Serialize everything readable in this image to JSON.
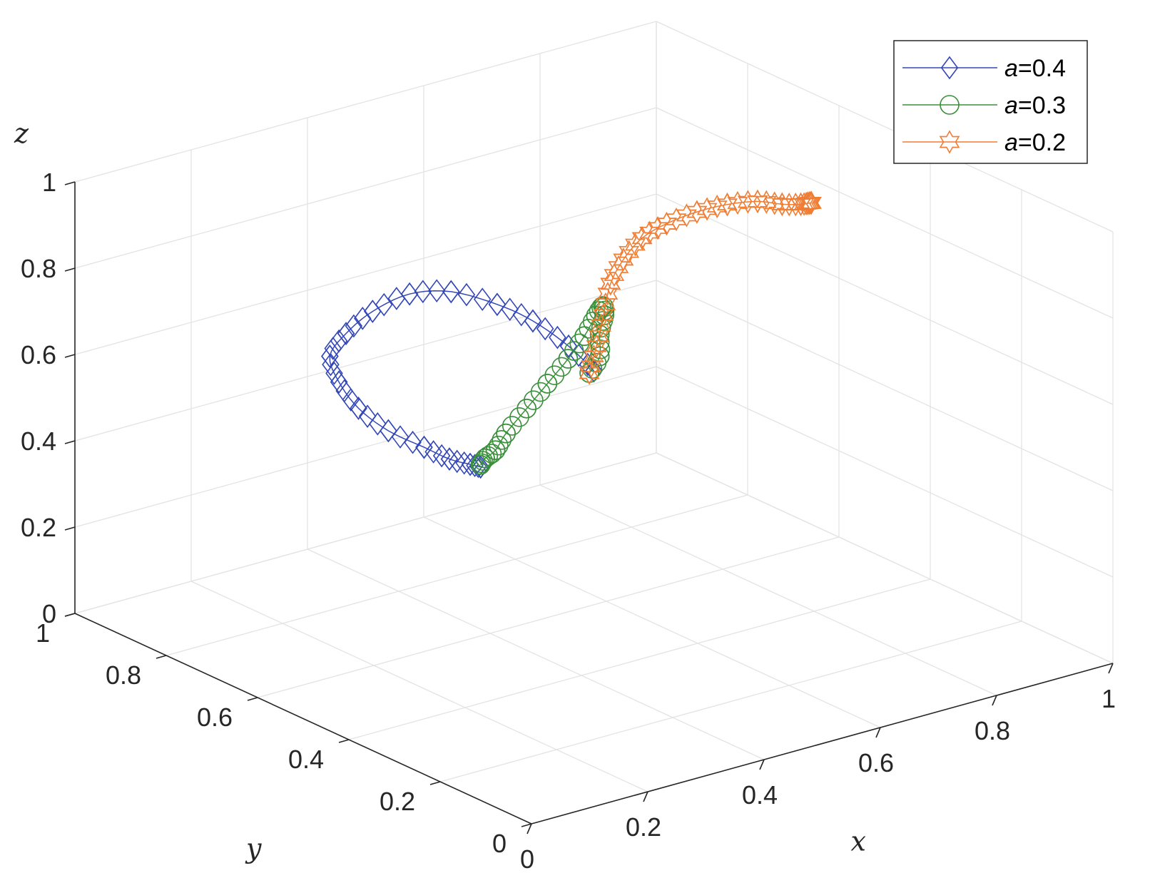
{
  "chart_data": {
    "type": "line3d",
    "xlabel": "x",
    "ylabel": "y",
    "zlabel": "z",
    "xlim": [
      0,
      1
    ],
    "ylim": [
      0,
      1
    ],
    "zlim": [
      0,
      1
    ],
    "grid": true,
    "legend_position": "top-right",
    "x_ticks": [
      "0",
      "0.2",
      "0.4",
      "0.6",
      "0.8",
      "1"
    ],
    "y_ticks": [
      "0",
      "0.2",
      "0.4",
      "0.6",
      "0.8",
      "1"
    ],
    "z_ticks": [
      "0",
      "0.2",
      "0.4",
      "0.6",
      "0.8",
      "1"
    ],
    "series": [
      {
        "name": "a=0.4",
        "legend_prefix": "a",
        "legend_suffix": "=0.4",
        "color": "#3347b8",
        "marker": "diamond",
        "points": [
          [
            0.5,
            0.5,
            0.62
          ],
          [
            0.48,
            0.53,
            0.67
          ],
          [
            0.45,
            0.57,
            0.72
          ],
          [
            0.42,
            0.61,
            0.75
          ],
          [
            0.38,
            0.66,
            0.77
          ],
          [
            0.34,
            0.7,
            0.76
          ],
          [
            0.3,
            0.73,
            0.72
          ],
          [
            0.27,
            0.75,
            0.67
          ],
          [
            0.25,
            0.76,
            0.62
          ],
          [
            0.25,
            0.74,
            0.57
          ],
          [
            0.26,
            0.71,
            0.52
          ],
          [
            0.28,
            0.67,
            0.48
          ],
          [
            0.31,
            0.63,
            0.45
          ],
          [
            0.33,
            0.6,
            0.43
          ],
          [
            0.35,
            0.58,
            0.42
          ],
          [
            0.36,
            0.57,
            0.415
          ]
        ]
      },
      {
        "name": "a=0.3",
        "legend_prefix": "a",
        "legend_suffix": "=0.3",
        "color": "#3a8f3a",
        "marker": "circle",
        "points": [
          [
            0.36,
            0.57,
            0.42
          ],
          [
            0.36,
            0.56,
            0.44
          ],
          [
            0.37,
            0.55,
            0.46
          ],
          [
            0.38,
            0.54,
            0.5
          ],
          [
            0.4,
            0.52,
            0.56
          ],
          [
            0.42,
            0.5,
            0.62
          ],
          [
            0.44,
            0.48,
            0.68
          ],
          [
            0.46,
            0.47,
            0.73
          ],
          [
            0.48,
            0.47,
            0.77
          ],
          [
            0.5,
            0.48,
            0.78
          ],
          [
            0.51,
            0.49,
            0.75
          ],
          [
            0.51,
            0.5,
            0.7
          ],
          [
            0.51,
            0.5,
            0.65
          ],
          [
            0.5,
            0.51,
            0.61
          ]
        ]
      },
      {
        "name": "a=0.2",
        "legend_prefix": "a",
        "legend_suffix": "=0.2",
        "color": "#f07d33",
        "marker": "hexagram",
        "points": [
          [
            0.5,
            0.51,
            0.61
          ],
          [
            0.52,
            0.52,
            0.66
          ],
          [
            0.54,
            0.53,
            0.72
          ],
          [
            0.56,
            0.54,
            0.78
          ],
          [
            0.59,
            0.55,
            0.82
          ],
          [
            0.63,
            0.56,
            0.85
          ],
          [
            0.68,
            0.57,
            0.86
          ],
          [
            0.74,
            0.58,
            0.86
          ],
          [
            0.8,
            0.59,
            0.85
          ],
          [
            0.86,
            0.6,
            0.83
          ],
          [
            0.91,
            0.61,
            0.8
          ],
          [
            0.95,
            0.62,
            0.78
          ],
          [
            0.97,
            0.63,
            0.77
          ],
          [
            0.98,
            0.635,
            0.765
          ]
        ]
      }
    ]
  }
}
